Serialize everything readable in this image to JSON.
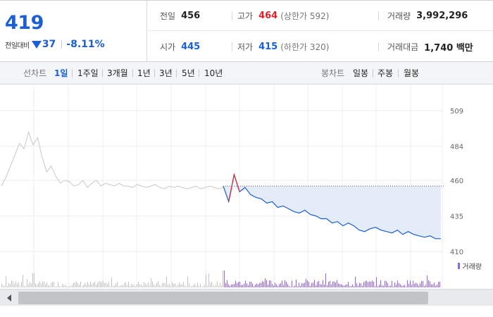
{
  "header": {
    "current_price": "419",
    "change_label": "전일대비",
    "change_value": "37",
    "change_rate": "-8.11%",
    "prev_close_label": "전일",
    "prev_close": "456",
    "open_label": "시가",
    "open": "445",
    "high_label": "고가",
    "high": "464",
    "upper_limit": "(상한가 592)",
    "low_label": "저가",
    "low": "415",
    "lower_limit": "(하한가 320)",
    "volume_label": "거래량",
    "volume": "3,992,296",
    "amount_label": "거래대금",
    "amount": "1,740 백만"
  },
  "period_bar": {
    "line_chart_label": "선차트",
    "line_periods": [
      "1일",
      "1주일",
      "3개월",
      "1년",
      "3년",
      "5년",
      "10년"
    ],
    "active_period": "1일",
    "candle_chart_label": "봉차트",
    "candle_periods": [
      "일봉",
      "주봉",
      "월봉"
    ]
  },
  "colors": {
    "up": "#e0222c",
    "down": "#1a5fd6",
    "prev_day_line": "#c8c8c8",
    "area_fill": "#e4ecfa",
    "volume_bar": "#8a70c8"
  },
  "chart_data": {
    "type": "line",
    "y_axis_ticks": [
      509,
      484,
      460,
      435,
      410
    ],
    "ylim": [
      410,
      509
    ],
    "reference_line": 456,
    "series": [
      {
        "values": [
          456,
          462,
          470,
          478,
          486,
          482,
          494,
          485,
          490,
          476,
          466,
          470,
          463,
          458,
          460,
          459,
          456,
          457,
          460,
          455,
          458,
          460,
          456,
          458,
          457,
          456,
          458,
          456,
          456,
          455,
          457,
          456,
          455,
          456,
          457,
          455,
          454,
          456,
          455,
          456,
          455,
          454,
          455,
          456,
          454,
          455,
          456,
          455,
          454,
          455
        ]
      },
      {
        "values": [
          456,
          445,
          464,
          452,
          455,
          450,
          448,
          447,
          444,
          445,
          441,
          442,
          440,
          438,
          437,
          439,
          436,
          435,
          433,
          433,
          430,
          431,
          428,
          430,
          428,
          425,
          424,
          426,
          427,
          425,
          424,
          423,
          425,
          422,
          424,
          422,
          421,
          420,
          421,
          419,
          419
        ]
      }
    ],
    "volume": {
      "legend": "거래량"
    }
  },
  "scrollbar": {}
}
